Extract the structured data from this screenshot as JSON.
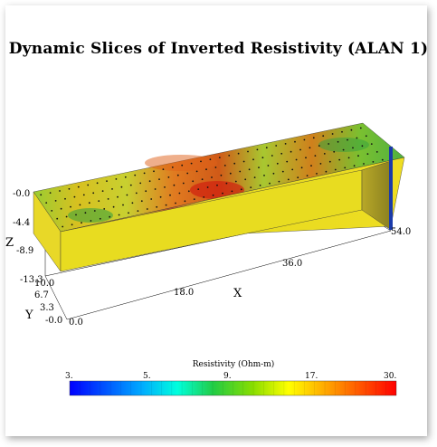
{
  "title": "Dynamic Slices of Inverted Resistivity (ALAN 1)",
  "chart_data": {
    "type": "heatmap",
    "title": "Dynamic Slices of Inverted Resistivity (ALAN 1)",
    "axes": {
      "x": {
        "label": "X",
        "ticks": [
          "18.0",
          "36.0",
          "54.0"
        ],
        "range": [
          0,
          54
        ]
      },
      "y": {
        "label": "Y",
        "ticks": [
          "-0.0",
          "3.3",
          "6.7",
          "10.0"
        ],
        "range": [
          0,
          10
        ]
      },
      "z": {
        "label": "Z",
        "ticks": [
          "-0.0",
          "-4.4",
          "-8.9",
          "-13.3"
        ],
        "range": [
          -13.3,
          0
        ]
      },
      "origin_label": "0.0"
    },
    "colorbar": {
      "label": "Resistivity (Ohm-m)",
      "scale": "log",
      "ticks": [
        "3.",
        "5.",
        "9.",
        "17.",
        "30."
      ],
      "colors": [
        "#0000ff",
        "#0055ff",
        "#00aaff",
        "#00ffdd",
        "#22cc44",
        "#88dd00",
        "#ffff00",
        "#ffaa00",
        "#ff5500",
        "#ff0000"
      ]
    }
  }
}
